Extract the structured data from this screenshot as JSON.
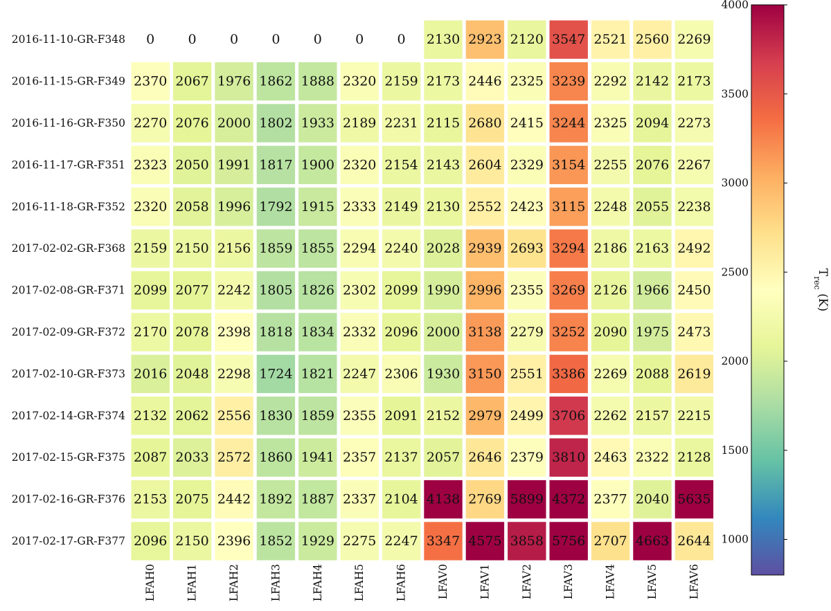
{
  "chart_data": {
    "type": "heatmap",
    "rows": [
      "2016-11-10-GR-F348",
      "2016-11-15-GR-F349",
      "2016-11-16-GR-F350",
      "2016-11-17-GR-F351",
      "2016-11-18-GR-F352",
      "2017-02-02-GR-F368",
      "2017-02-08-GR-F371",
      "2017-02-09-GR-F372",
      "2017-02-10-GR-F373",
      "2017-02-14-GR-F374",
      "2017-02-15-GR-F375",
      "2017-02-16-GR-F376",
      "2017-02-17-GR-F377"
    ],
    "columns": [
      "LFAH0",
      "LFAH1",
      "LFAH2",
      "LFAH3",
      "LFAH4",
      "LFAH5",
      "LFAH6",
      "LFAV0",
      "LFAV1",
      "LFAV2",
      "LFAV3",
      "LFAV4",
      "LFAV5",
      "LFAV6"
    ],
    "values": [
      [
        0,
        0,
        0,
        0,
        0,
        0,
        0,
        2130,
        2923,
        2120,
        3547,
        2521,
        2560,
        2269
      ],
      [
        2370,
        2067,
        1976,
        1862,
        1888,
        2320,
        2159,
        2173,
        2446,
        2325,
        3239,
        2292,
        2142,
        2173
      ],
      [
        2270,
        2076,
        2000,
        1802,
        1933,
        2189,
        2231,
        2115,
        2680,
        2415,
        3244,
        2325,
        2094,
        2273
      ],
      [
        2323,
        2050,
        1991,
        1817,
        1900,
        2320,
        2154,
        2143,
        2604,
        2329,
        3154,
        2255,
        2076,
        2267
      ],
      [
        2320,
        2058,
        1996,
        1792,
        1915,
        2333,
        2149,
        2130,
        2552,
        2423,
        3115,
        2248,
        2055,
        2238
      ],
      [
        2159,
        2150,
        2156,
        1859,
        1855,
        2294,
        2240,
        2028,
        2939,
        2693,
        3294,
        2186,
        2163,
        2492
      ],
      [
        2099,
        2077,
        2242,
        1805,
        1826,
        2302,
        2099,
        1990,
        2996,
        2355,
        3269,
        2126,
        1966,
        2450
      ],
      [
        2170,
        2078,
        2398,
        1818,
        1834,
        2332,
        2096,
        2000,
        3138,
        2279,
        3252,
        2090,
        1975,
        2473
      ],
      [
        2016,
        2048,
        2298,
        1724,
        1821,
        2247,
        2306,
        1930,
        3150,
        2551,
        3386,
        2269,
        2088,
        2619
      ],
      [
        2132,
        2062,
        2556,
        1830,
        1859,
        2355,
        2091,
        2152,
        2979,
        2499,
        3706,
        2262,
        2157,
        2215
      ],
      [
        2087,
        2033,
        2572,
        1860,
        1941,
        2357,
        2137,
        2057,
        2646,
        2379,
        3810,
        2463,
        2322,
        2128
      ],
      [
        2153,
        2075,
        2442,
        1892,
        1887,
        2337,
        2104,
        4138,
        2769,
        5899,
        4372,
        2377,
        2040,
        5635
      ],
      [
        2096,
        2150,
        2396,
        1852,
        1929,
        2275,
        2247,
        3347,
        4575,
        3858,
        5756,
        2707,
        4663,
        2644
      ]
    ],
    "colorbar": {
      "label": "T_rec (K)",
      "min": 800,
      "max": 4000,
      "ticks": [
        1000,
        1500,
        2000,
        2500,
        3000,
        3500,
        4000
      ],
      "colormap": "Spectral_r"
    },
    "colormap_stops": [
      "#5e4fa2",
      "#3288bd",
      "#66c2a5",
      "#abdda4",
      "#e6f598",
      "#ffffbf",
      "#fee08b",
      "#fdae61",
      "#f46d43",
      "#d53e4f",
      "#9e0142"
    ]
  }
}
